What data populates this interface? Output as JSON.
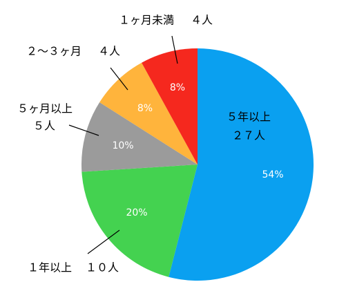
{
  "chart_data": {
    "type": "pie",
    "categories": [
      "５年以上",
      "１年以上",
      "５ヶ月以上",
      "２〜３ヶ月",
      "１ヶ月未満"
    ],
    "count_labels": [
      "２７人",
      "１０人",
      "５人",
      "４人",
      "４人"
    ],
    "values": [
      54,
      20,
      10,
      8,
      8
    ],
    "value_labels": [
      "54%",
      "20%",
      "10%",
      "8%",
      "8%"
    ],
    "colors": [
      "#0aa0f0",
      "#44d250",
      "#9b9b9b",
      "#ffb43c",
      "#f5281e"
    ]
  }
}
